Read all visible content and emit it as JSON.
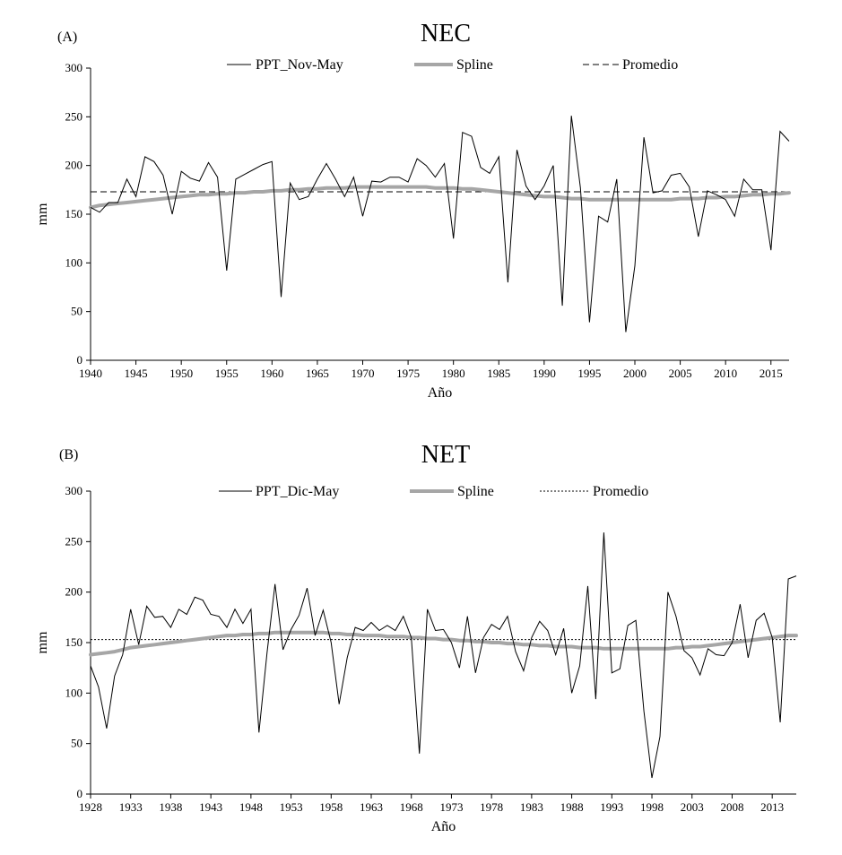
{
  "chart_data": [
    {
      "panel": "(A)",
      "title": "NEC",
      "type": "line",
      "xlabel": "Año",
      "ylabel": "mm",
      "xlim": [
        1940,
        2017
      ],
      "ylim": [
        0,
        300
      ],
      "xticks": [
        1940,
        1945,
        1950,
        1955,
        1960,
        1965,
        1970,
        1975,
        1980,
        1985,
        1990,
        1995,
        2000,
        2005,
        2010,
        2015
      ],
      "yticks": [
        0,
        50,
        100,
        150,
        200,
        250,
        300
      ],
      "legend": [
        "PPT_Nov-May",
        "Spline",
        "Promedio"
      ],
      "x_start": 1940,
      "series": [
        {
          "name": "PPT_Nov-May",
          "style": "solid-thin",
          "values": [
            157,
            152,
            162,
            162,
            186,
            168,
            209,
            204,
            190,
            150,
            194,
            187,
            184,
            203,
            188,
            92,
            186,
            191,
            196,
            201,
            204,
            65,
            182,
            165,
            168,
            186,
            202,
            186,
            168,
            188,
            148,
            184,
            183,
            188,
            188,
            183,
            207,
            200,
            188,
            202,
            125,
            234,
            230,
            198,
            192,
            209,
            80,
            216,
            179,
            165,
            179,
            200,
            56,
            251,
            177,
            39,
            148,
            142,
            186,
            29,
            97,
            229,
            172,
            174,
            190,
            192,
            178,
            127,
            174,
            170,
            165,
            148,
            186,
            175,
            175,
            113,
            235,
            225
          ]
        },
        {
          "name": "Spline",
          "style": "thick-gray",
          "values": [
            157,
            159,
            160,
            161,
            162,
            163,
            164,
            165,
            166,
            167,
            168,
            169,
            170,
            170,
            171,
            171,
            172,
            172,
            173,
            173,
            174,
            174,
            175,
            175,
            176,
            176,
            177,
            177,
            177,
            178,
            178,
            178,
            178,
            178,
            178,
            178,
            178,
            178,
            177,
            177,
            177,
            176,
            176,
            175,
            174,
            173,
            172,
            171,
            170,
            169,
            168,
            168,
            167,
            166,
            166,
            165,
            165,
            165,
            165,
            165,
            165,
            165,
            165,
            165,
            165,
            166,
            166,
            166,
            167,
            167,
            168,
            168,
            169,
            170,
            170,
            171,
            171,
            172
          ]
        },
        {
          "name": "Promedio",
          "style": "dashed",
          "value": 173
        }
      ]
    },
    {
      "panel": "(B)",
      "title": "NET",
      "type": "line",
      "xlabel": "Año",
      "ylabel": "mm",
      "xlim": [
        1928,
        2016
      ],
      "ylim": [
        0,
        300
      ],
      "xticks": [
        1928,
        1933,
        1938,
        1943,
        1948,
        1953,
        1958,
        1963,
        1968,
        1973,
        1978,
        1983,
        1988,
        1993,
        1998,
        2003,
        2008,
        2013
      ],
      "yticks": [
        0,
        50,
        100,
        150,
        200,
        250,
        300
      ],
      "legend": [
        "PPT_Dic-May",
        "Spline",
        "Promedio"
      ],
      "x_start": 1928,
      "series": [
        {
          "name": "PPT_Dic-May",
          "style": "solid-thin",
          "values": [
            127,
            106,
            65,
            117,
            138,
            183,
            148,
            186,
            175,
            176,
            165,
            183,
            178,
            195,
            192,
            178,
            176,
            165,
            183,
            169,
            183,
            61,
            140,
            208,
            143,
            163,
            177,
            204,
            157,
            182,
            150,
            89,
            135,
            165,
            162,
            170,
            162,
            167,
            162,
            176,
            155,
            40,
            183,
            162,
            163,
            150,
            125,
            176,
            120,
            155,
            168,
            163,
            176,
            141,
            122,
            155,
            171,
            162,
            138,
            164,
            100,
            127,
            206,
            94,
            259,
            120,
            124,
            167,
            172,
            82,
            16,
            57,
            200,
            176,
            142,
            135,
            118,
            144,
            138,
            137,
            150,
            188,
            135,
            172,
            179,
            155,
            71,
            213,
            216
          ]
        },
        {
          "name": "Spline",
          "style": "thick-gray",
          "values": [
            138,
            139,
            140,
            141,
            143,
            145,
            146,
            147,
            148,
            149,
            150,
            151,
            152,
            153,
            154,
            155,
            156,
            157,
            157,
            158,
            158,
            159,
            159,
            160,
            160,
            160,
            160,
            160,
            160,
            160,
            159,
            159,
            158,
            158,
            157,
            157,
            157,
            156,
            156,
            156,
            155,
            155,
            154,
            154,
            153,
            153,
            152,
            152,
            151,
            151,
            150,
            150,
            149,
            149,
            148,
            148,
            147,
            147,
            146,
            146,
            146,
            145,
            145,
            145,
            144,
            144,
            144,
            144,
            144,
            144,
            144,
            144,
            144,
            145,
            145,
            146,
            146,
            147,
            148,
            149,
            150,
            151,
            152,
            153,
            154,
            155,
            156,
            157,
            157
          ]
        },
        {
          "name": "Promedio",
          "style": "dotted",
          "value": 153
        }
      ]
    }
  ]
}
